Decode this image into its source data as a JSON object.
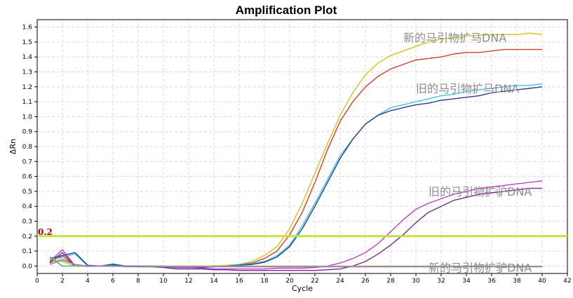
{
  "chart_data": {
    "type": "line",
    "title": "Amplification Plot",
    "xlabel": "Cycle",
    "ylabel": "ΔRn",
    "xlim": [
      0,
      42
    ],
    "ylim": [
      -0.05,
      1.65
    ],
    "x_ticks": [
      "0",
      "2",
      "4",
      "6",
      "8",
      "10",
      "12",
      "14",
      "16",
      "18",
      "20",
      "22",
      "24",
      "26",
      "28",
      "30",
      "32",
      "34",
      "36",
      "38",
      "40",
      "42"
    ],
    "y_ticks": [
      "0.0",
      "0.1",
      "0.2",
      "0.3",
      "0.4",
      "0.5",
      "0.6",
      "0.7",
      "0.8",
      "0.9",
      "1.0",
      "1.1",
      "1.2",
      "1.3",
      "1.4",
      "1.5",
      "1.6"
    ],
    "grid": true,
    "threshold": {
      "value": 0.2,
      "label": "0.2",
      "color": "#c8e03c",
      "label_color": "#aa0000"
    },
    "annotations": [
      {
        "text": "新的马引物扩马DNA",
        "x": 29,
        "y": 1.53
      },
      {
        "text": "旧的马引物扩马DNA",
        "x": 30,
        "y": 1.19
      },
      {
        "text": "旧的马引物扩驴DNA",
        "x": 31,
        "y": 0.5
      },
      {
        "text": "新的马引物扩驴DNA",
        "x": 31,
        "y": -0.01
      }
    ],
    "x": [
      1,
      2,
      3,
      4,
      5,
      6,
      7,
      8,
      9,
      10,
      11,
      12,
      13,
      14,
      15,
      16,
      17,
      18,
      19,
      20,
      21,
      22,
      23,
      24,
      25,
      26,
      27,
      28,
      29,
      30,
      31,
      32,
      33,
      34,
      35,
      36,
      37,
      38,
      39,
      40
    ],
    "series": [
      {
        "color": "#d4c21a",
        "values": [
          0.02,
          0.05,
          0.01,
          0.0,
          0.0,
          0.005,
          0.0,
          0.0,
          0.0,
          0.0,
          0.0,
          0.0,
          0.0,
          0.0,
          0.005,
          0.01,
          0.03,
          0.07,
          0.13,
          0.25,
          0.42,
          0.62,
          0.82,
          1.01,
          1.16,
          1.28,
          1.36,
          1.41,
          1.44,
          1.47,
          1.5,
          1.52,
          1.53,
          1.54,
          1.545,
          1.55,
          1.55,
          1.55,
          1.56,
          1.55
        ]
      },
      {
        "color": "#d04030",
        "values": [
          0.03,
          0.07,
          0.0,
          0.0,
          0.0,
          0.005,
          0.0,
          0.0,
          0.0,
          0.0,
          -0.005,
          -0.005,
          -0.005,
          0.0,
          0.0,
          0.01,
          0.02,
          0.05,
          0.1,
          0.21,
          0.36,
          0.56,
          0.78,
          0.97,
          1.1,
          1.2,
          1.27,
          1.32,
          1.35,
          1.38,
          1.39,
          1.4,
          1.42,
          1.43,
          1.43,
          1.44,
          1.45,
          1.45,
          1.45,
          1.45
        ]
      },
      {
        "color": "#40c4e8",
        "values": [
          0.04,
          0.06,
          0.08,
          0.0,
          0.0,
          0.015,
          0.0,
          0.0,
          0.0,
          0.0,
          -0.005,
          -0.005,
          -0.005,
          -0.005,
          0.0,
          0.01,
          0.015,
          0.03,
          0.07,
          0.14,
          0.27,
          0.42,
          0.58,
          0.74,
          0.85,
          0.95,
          1.01,
          1.06,
          1.08,
          1.1,
          1.12,
          1.14,
          1.15,
          1.17,
          1.18,
          1.19,
          1.2,
          1.21,
          1.21,
          1.22
        ]
      },
      {
        "color": "#2a3a8c",
        "values": [
          0.05,
          0.07,
          0.09,
          0.005,
          0.0,
          0.01,
          0.0,
          0.0,
          0.0,
          -0.005,
          -0.01,
          -0.01,
          -0.01,
          -0.005,
          0.0,
          0.005,
          0.01,
          0.025,
          0.06,
          0.13,
          0.25,
          0.4,
          0.56,
          0.72,
          0.85,
          0.95,
          1.01,
          1.04,
          1.06,
          1.08,
          1.09,
          1.11,
          1.12,
          1.13,
          1.14,
          1.16,
          1.17,
          1.18,
          1.19,
          1.2
        ]
      },
      {
        "color": "#c040c8",
        "values": [
          0.03,
          0.11,
          0.0,
          0.0,
          0.0,
          0.0,
          0.0,
          0.0,
          0.0,
          0.0,
          -0.01,
          -0.01,
          -0.015,
          -0.02,
          -0.02,
          -0.02,
          -0.02,
          -0.02,
          -0.015,
          -0.015,
          -0.015,
          -0.01,
          0.0,
          0.02,
          0.05,
          0.09,
          0.15,
          0.23,
          0.31,
          0.38,
          0.42,
          0.45,
          0.48,
          0.5,
          0.52,
          0.53,
          0.54,
          0.55,
          0.56,
          0.57
        ]
      },
      {
        "color": "#7a2a8c",
        "values": [
          0.02,
          0.09,
          0.0,
          0.0,
          0.0,
          0.0,
          0.0,
          -0.005,
          -0.005,
          -0.01,
          -0.02,
          -0.02,
          -0.02,
          -0.025,
          -0.025,
          -0.03,
          -0.03,
          -0.03,
          -0.03,
          -0.03,
          -0.03,
          -0.03,
          -0.025,
          -0.02,
          0.0,
          0.03,
          0.08,
          0.14,
          0.21,
          0.29,
          0.36,
          0.4,
          0.44,
          0.46,
          0.48,
          0.49,
          0.5,
          0.51,
          0.52,
          0.52
        ]
      },
      {
        "color": "#30b050",
        "values": [
          0.06,
          0.0,
          0.0,
          0.0,
          0.0,
          0.005,
          -0.005,
          -0.005,
          -0.005,
          -0.005,
          -0.005,
          -0.005,
          -0.005,
          -0.005,
          -0.005,
          -0.005,
          -0.005,
          -0.005,
          -0.005,
          -0.005,
          -0.005,
          -0.005,
          -0.005,
          -0.005,
          -0.005,
          -0.005,
          -0.005,
          -0.005,
          -0.005,
          -0.005,
          -0.005,
          -0.005,
          -0.005,
          -0.005,
          -0.005,
          -0.005,
          -0.005,
          -0.005,
          -0.005,
          -0.005
        ]
      },
      {
        "color": "#90d040",
        "values": [
          0.05,
          0.03,
          0.0,
          0.0,
          0.0,
          0.0,
          0.0,
          0.0,
          0.0,
          0.0,
          0.0,
          0.0,
          0.0,
          0.0,
          0.0,
          0.0,
          0.0,
          0.0,
          0.0,
          0.0,
          0.0,
          0.0,
          0.0,
          0.0,
          0.0,
          0.0,
          0.0,
          0.0,
          0.0,
          0.0,
          0.0,
          0.0,
          0.0,
          0.0,
          0.0,
          0.0,
          0.0,
          0.0,
          0.0,
          0.0
        ]
      },
      {
        "color": "#b060d8",
        "values": [
          0.01,
          0.04,
          0.01,
          0.0,
          0.0,
          0.0,
          0.0,
          0.0,
          -0.005,
          -0.005,
          -0.005,
          -0.005,
          -0.005,
          -0.005,
          -0.005,
          -0.005,
          -0.005,
          -0.005,
          -0.005,
          -0.005,
          -0.005,
          -0.005,
          -0.005,
          -0.005,
          -0.005,
          -0.005,
          -0.005,
          -0.005,
          -0.005,
          -0.005,
          -0.005,
          -0.005,
          -0.005,
          -0.005,
          -0.005,
          -0.005,
          -0.005,
          -0.005,
          -0.005,
          -0.005
        ]
      }
    ]
  }
}
